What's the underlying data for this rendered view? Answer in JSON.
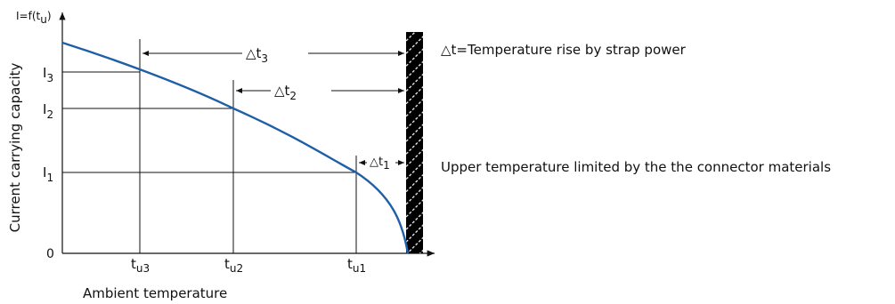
{
  "diagram": {
    "y_axis_label": "Current carrying capacity",
    "y_axis_function": {
      "main": "I=f(t",
      "sub": "u",
      "tail": ")"
    },
    "x_axis_label": "Ambient temperature",
    "origin_label": "0",
    "currents": [
      {
        "main": "I",
        "sub": "3"
      },
      {
        "main": "I",
        "sub": "2"
      },
      {
        "main": "I",
        "sub": "1"
      }
    ],
    "temperatures": [
      {
        "main": "t",
        "sub": "u3"
      },
      {
        "main": "t",
        "sub": "u2"
      },
      {
        "main": "t",
        "sub": "u1"
      }
    ],
    "deltas": [
      {
        "main": "△t",
        "sub": "3"
      },
      {
        "main": "△t",
        "sub": "2"
      },
      {
        "main": "△t",
        "sub": "1"
      }
    ],
    "legend_delta": "△t=Temperature rise by strap power",
    "limit_note": "Upper temperature limited by the the connector materials",
    "colors": {
      "curve": "#1f5fa8",
      "lines": "#111111",
      "limit_hatch": "#000000"
    }
  }
}
